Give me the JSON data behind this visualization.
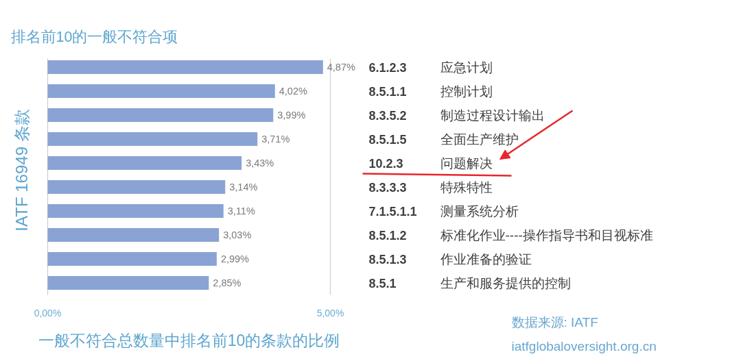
{
  "chart_data": {
    "type": "bar",
    "orientation": "horizontal",
    "title": "排名前10的一般不符合项",
    "xlabel": "一般不符合总数量中排名前10的条款的比例",
    "ylabel": "IATF 16949 条款",
    "categories": [
      "6.1.2.3 应急计划",
      "8.5.1.1 控制计划",
      "8.3.5.2 制造过程设计输出",
      "8.5.1.5 全面生产维护",
      "10.2.3 问题解决",
      "8.3.3.3 特殊特性",
      "7.1.5.1.1 测量系统分析",
      "8.5.1.2 标准化作业----操作指导书和目视标准",
      "8.5.1.3 作业准备的验证",
      "8.5.1 生产和服务提供的控制"
    ],
    "values": [
      4.87,
      4.02,
      3.99,
      3.71,
      3.43,
      3.14,
      3.11,
      3.03,
      2.99,
      2.85
    ],
    "value_labels": [
      "4,87%",
      "4,02%",
      "3,99%",
      "3,71%",
      "3,43%",
      "3,14%",
      "3,11%",
      "3,03%",
      "2,99%",
      "2,85%"
    ],
    "color": "#8aa3d4",
    "xlim": [
      0,
      5
    ],
    "xticks": [
      {
        "value": 0,
        "label": "0,00%"
      },
      {
        "value": 5,
        "label": "5,00%"
      }
    ],
    "grid": "x",
    "annotations": [
      "数据来源: IATF",
      "iatfglobaloversight.org.cn"
    ]
  }
}
